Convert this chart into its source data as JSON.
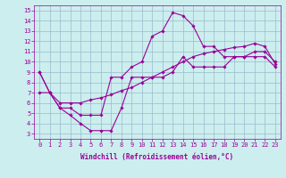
{
  "xlabel": "Windchill (Refroidissement éolien,°C)",
  "xlim": [
    -0.5,
    23.5
  ],
  "ylim": [
    2.5,
    15.5
  ],
  "xticks": [
    0,
    1,
    2,
    3,
    4,
    5,
    6,
    7,
    8,
    9,
    10,
    11,
    12,
    13,
    14,
    15,
    16,
    17,
    18,
    19,
    20,
    21,
    22,
    23
  ],
  "yticks": [
    3,
    4,
    5,
    6,
    7,
    8,
    9,
    10,
    11,
    12,
    13,
    14,
    15
  ],
  "line_color": "#990099",
  "bg_color": "#cceeee",
  "grid_color": "#99bbcc",
  "line1_x": [
    0,
    1,
    2,
    3,
    4,
    5,
    6,
    7,
    8,
    9,
    10,
    11,
    12,
    13,
    14,
    15,
    16,
    17,
    18,
    19,
    20,
    21,
    22,
    23
  ],
  "line1_y": [
    9.0,
    7.0,
    5.5,
    4.8,
    4.0,
    3.3,
    3.3,
    3.3,
    5.5,
    8.5,
    8.5,
    8.5,
    8.5,
    9.0,
    10.5,
    9.5,
    9.5,
    9.5,
    9.5,
    10.5,
    10.5,
    10.5,
    10.5,
    9.5
  ],
  "line2_x": [
    0,
    1,
    2,
    3,
    4,
    5,
    6,
    7,
    8,
    9,
    10,
    11,
    12,
    13,
    14,
    15,
    16,
    17,
    18,
    19,
    20,
    21,
    22,
    23
  ],
  "line2_y": [
    9.0,
    7.0,
    5.5,
    5.5,
    4.8,
    4.8,
    4.8,
    8.5,
    8.5,
    9.5,
    10.0,
    12.5,
    13.0,
    14.8,
    14.5,
    13.5,
    11.5,
    11.5,
    10.5,
    10.5,
    10.5,
    11.0,
    11.0,
    10.0
  ],
  "line3_x": [
    0,
    1,
    2,
    3,
    4,
    5,
    6,
    7,
    8,
    9,
    10,
    11,
    12,
    13,
    14,
    15,
    16,
    17,
    18,
    19,
    20,
    21,
    22,
    23
  ],
  "line3_y": [
    7.0,
    7.0,
    6.0,
    6.0,
    6.0,
    6.3,
    6.5,
    6.8,
    7.2,
    7.5,
    8.0,
    8.5,
    9.0,
    9.5,
    10.0,
    10.5,
    10.8,
    11.0,
    11.2,
    11.4,
    11.5,
    11.8,
    11.5,
    9.8
  ],
  "marker": "D",
  "markersize": 1.8,
  "linewidth": 0.8,
  "tick_fontsize": 5,
  "xlabel_fontsize": 5.5
}
